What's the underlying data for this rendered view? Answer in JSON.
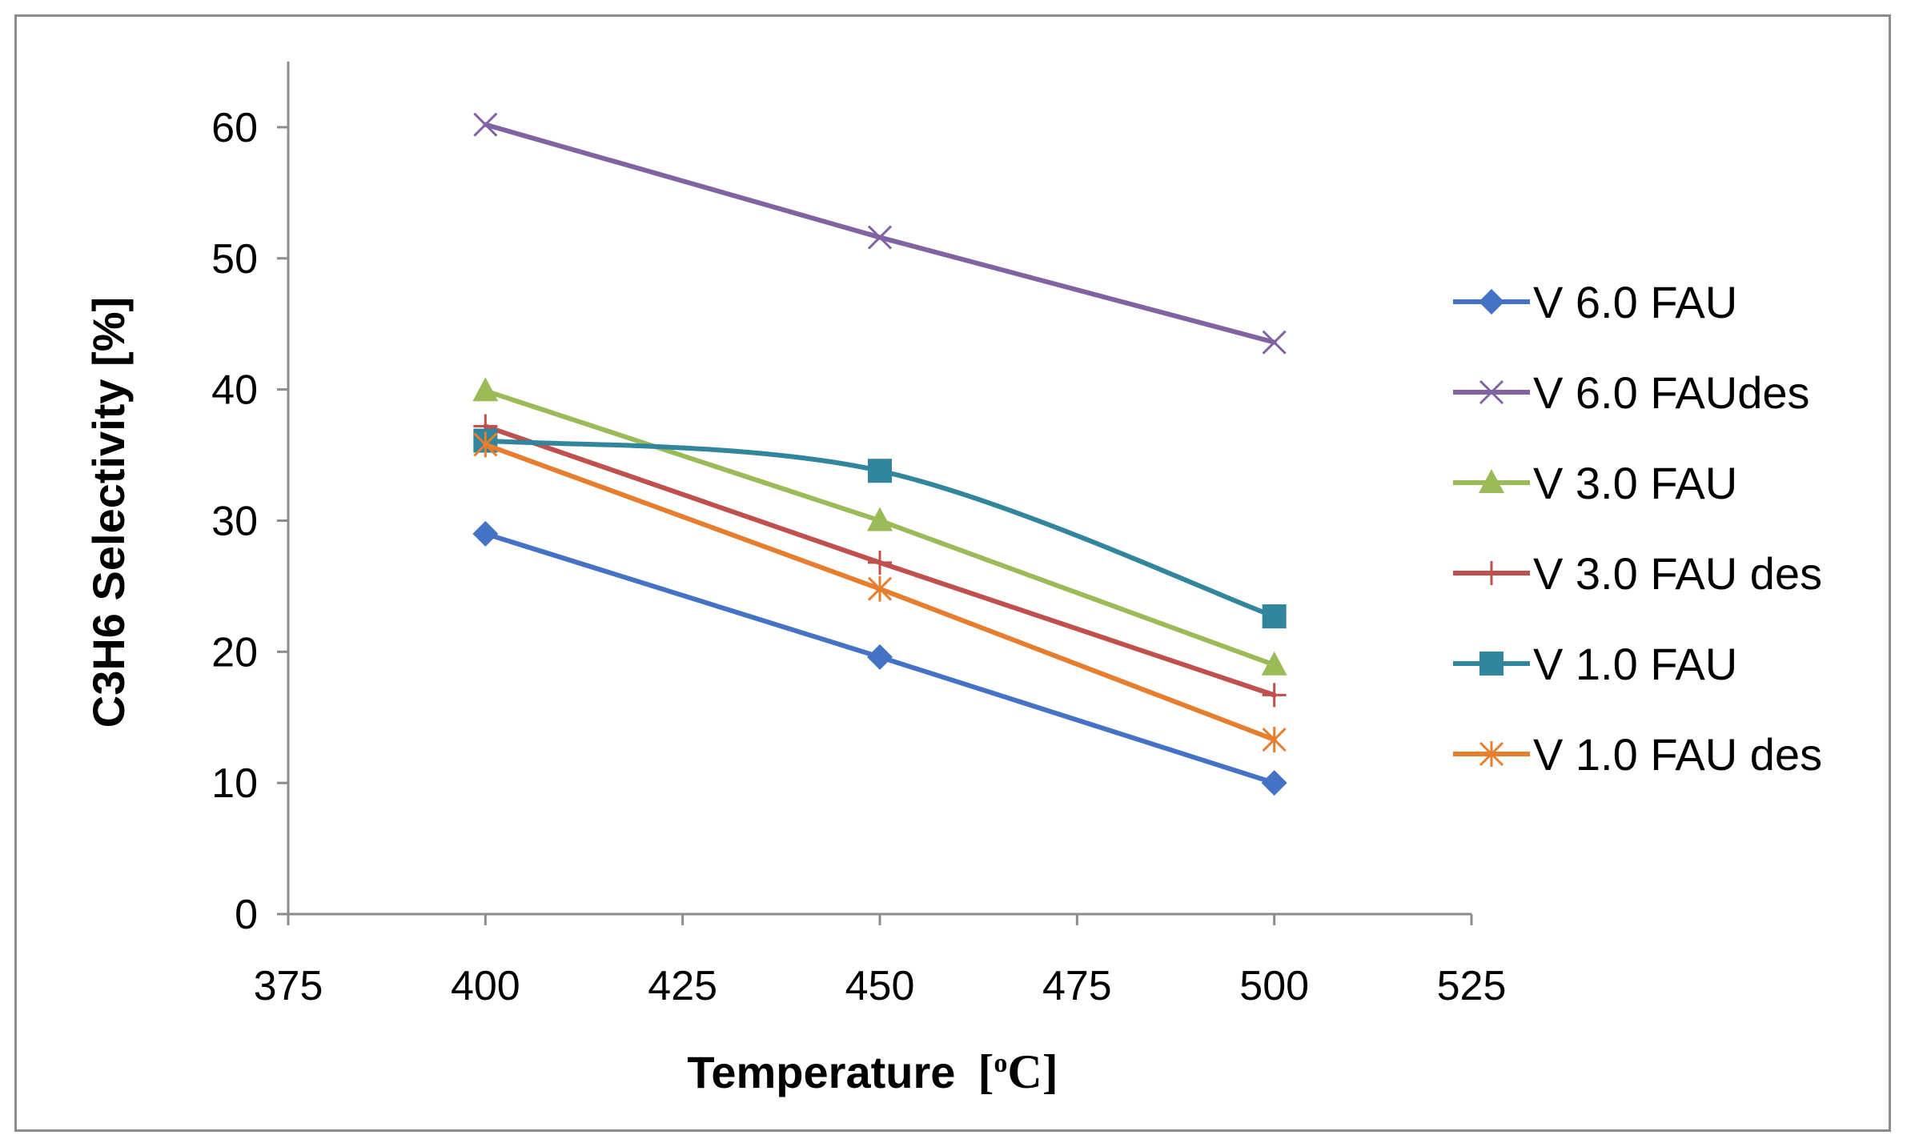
{
  "chart_data": {
    "type": "line",
    "title": "",
    "xlabel": "Temperature",
    "xlabel_unit_open": "[",
    "xlabel_unit_sup": "o",
    "xlabel_unit_main": "C]",
    "ylabel": "C3H6 Selectivity [%]",
    "xlim": [
      375,
      525
    ],
    "ylim": [
      0,
      65
    ],
    "xticks": [
      "375",
      "400",
      "425",
      "450",
      "475",
      "500",
      "525"
    ],
    "yticks": [
      "0",
      "10",
      "20",
      "30",
      "40",
      "50",
      "60"
    ],
    "x": [
      400,
      450,
      500
    ],
    "legend_position": "right",
    "series": [
      {
        "name": "V 6.0 FAU",
        "values": [
          29,
          19.6,
          10
        ],
        "color": "#4472C4",
        "marker": "diamond",
        "smooth": false
      },
      {
        "name": "V 6.0 FAUdes",
        "values": [
          60.2,
          51.6,
          43.6
        ],
        "color": "#8064A2",
        "marker": "x",
        "smooth": false
      },
      {
        "name": "V 3.0 FAU",
        "values": [
          39.9,
          30,
          19
        ],
        "color": "#9BBB59",
        "marker": "triangle",
        "smooth": false
      },
      {
        "name": "V 3.0 FAU des",
        "values": [
          37.2,
          26.8,
          16.7
        ],
        "color": "#C0504D",
        "marker": "plus",
        "smooth": false
      },
      {
        "name": "V 1.0 FAU",
        "values": [
          36.1,
          33.8,
          22.7
        ],
        "color": "#31859C",
        "marker": "square",
        "smooth": true
      },
      {
        "name": "V 1.0 FAU des",
        "values": [
          35.8,
          24.8,
          13.3
        ],
        "color": "#E67E30",
        "marker": "asterisk",
        "smooth": false
      }
    ]
  }
}
